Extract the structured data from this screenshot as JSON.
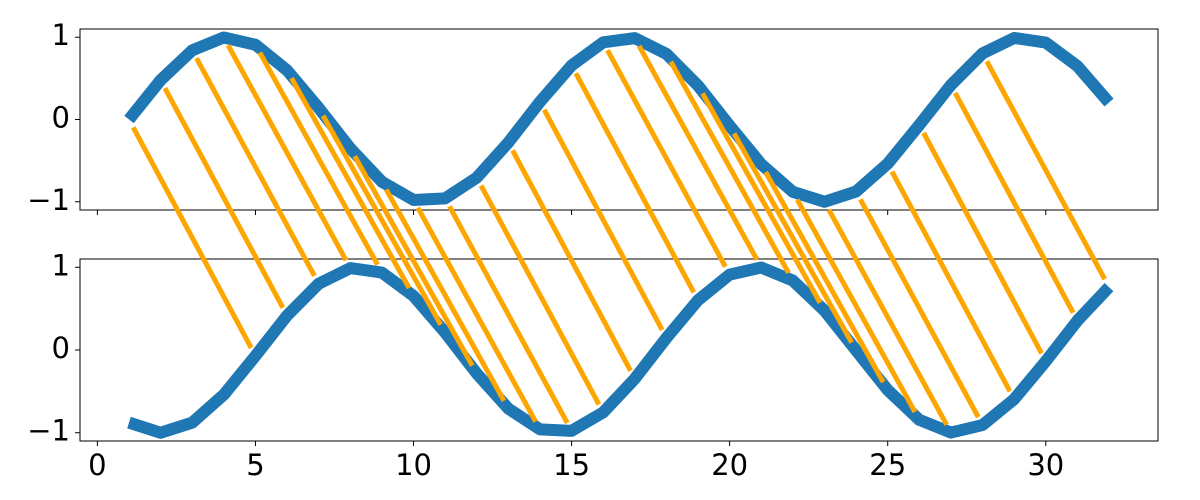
{
  "chart_data": [
    {
      "type": "line",
      "x": [
        1,
        2,
        3,
        4,
        5,
        6,
        7,
        8,
        9,
        10,
        11,
        12,
        13,
        14,
        15,
        16,
        17,
        18,
        19,
        20,
        21,
        22,
        23,
        24,
        25,
        26,
        27,
        28,
        29,
        30,
        31,
        32
      ],
      "series": [
        {
          "color": "#1f77b4",
          "values": [
            0,
            0.479,
            0.841,
            0.997,
            0.909,
            0.598,
            0.141,
            -0.351,
            -0.757,
            -0.978,
            -0.959,
            -0.706,
            -0.279,
            0.215,
            0.657,
            0.938,
            0.989,
            0.798,
            0.412,
            -0.075,
            -0.544,
            -0.88,
            -1.0,
            -0.875,
            -0.537,
            -0.066,
            0.42,
            0.804,
            0.991,
            0.935,
            0.65,
            0.206
          ]
        }
      ],
      "xlim": [
        -0.55,
        33.55
      ],
      "ylim": [
        -1.1,
        1.1
      ],
      "xticks": [
        0,
        5,
        10,
        15,
        20,
        25,
        30
      ],
      "xtick_labels": false,
      "yticks": [
        {
          "value": -1,
          "label": "−1"
        },
        0,
        1
      ]
    },
    {
      "type": "line",
      "x": [
        1,
        2,
        3,
        4,
        5,
        6,
        7,
        8,
        9,
        10,
        11,
        12,
        13,
        14,
        15,
        16,
        17,
        18,
        19,
        20,
        21,
        22,
        23,
        24,
        25,
        26,
        27,
        28,
        29,
        30,
        31,
        32
      ],
      "series": [
        {
          "color": "#1f77b4",
          "values": [
            -0.878,
            -1.0,
            -0.878,
            -0.54,
            -0.071,
            0.416,
            0.801,
            0.99,
            0.936,
            0.654,
            0.211,
            -0.284,
            -0.709,
            -0.96,
            -0.977,
            -0.754,
            -0.347,
            0.146,
            0.602,
            0.911,
            0.997,
            0.839,
            0.476,
            -0.004,
            -0.484,
            -0.844,
            -0.998,
            -0.907,
            -0.595,
            -0.136,
            0.355,
            0.76
          ]
        }
      ],
      "xlim": [
        -0.55,
        33.55
      ],
      "ylim": [
        -1.1,
        1.1
      ],
      "xticks": [
        0,
        5,
        10,
        15,
        20,
        25,
        30
      ],
      "xtick_labels": true,
      "yticks": [
        {
          "value": -1,
          "label": "−1"
        },
        0,
        1
      ]
    }
  ],
  "connections": {
    "color": "#ffa500",
    "from": 0,
    "to": 1
  }
}
